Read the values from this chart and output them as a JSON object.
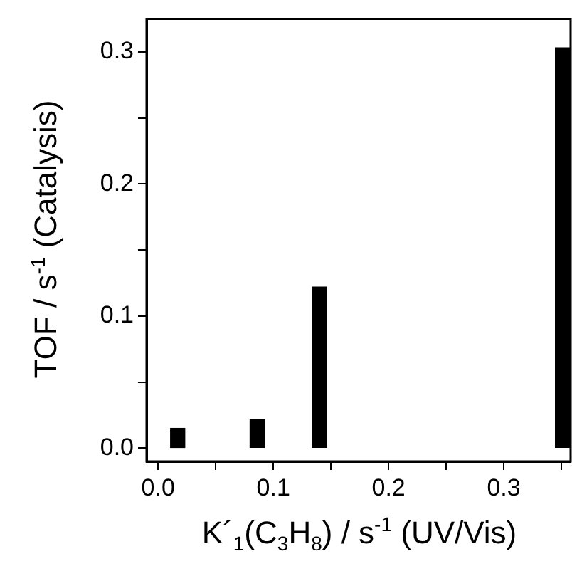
{
  "chart_data": {
    "type": "bar",
    "xlabel": "K´$_{1}$(C$_{3}$H$_{8}$) / s$^{-1}$ (UV/Vis)",
    "ylabel": "TOF / s$^{-1}$ (Catalysis)",
    "x": [
      0.017,
      0.086,
      0.14,
      0.351
    ],
    "values": [
      0.015,
      0.022,
      0.122,
      0.303
    ],
    "color": "#000000",
    "xlim": [
      -0.01,
      0.358
    ],
    "xticks": [
      {
        "value": 0,
        "label": "0.0"
      },
      {
        "value": 0.05,
        "label": null
      },
      {
        "value": 0.1,
        "label": "0.1"
      },
      {
        "value": 0.15,
        "label": null
      },
      {
        "value": 0.2,
        "label": "0.2"
      },
      {
        "value": 0.25,
        "label": null
      },
      {
        "value": 0.3,
        "label": "0.3"
      },
      {
        "value": 0.35,
        "label": null
      }
    ],
    "ylim": [
      -0.01,
      0.325
    ],
    "yticks": [
      {
        "value": 0,
        "label": "0.0"
      },
      {
        "value": 0.05,
        "label": null
      },
      {
        "value": 0.1,
        "label": "0.1"
      },
      {
        "value": 0.15,
        "label": null
      },
      {
        "value": 0.2,
        "label": "0.2"
      },
      {
        "value": 0.25,
        "label": null
      },
      {
        "value": 0.3,
        "label": "0.3"
      }
    ],
    "grid": false,
    "legend": false
  }
}
